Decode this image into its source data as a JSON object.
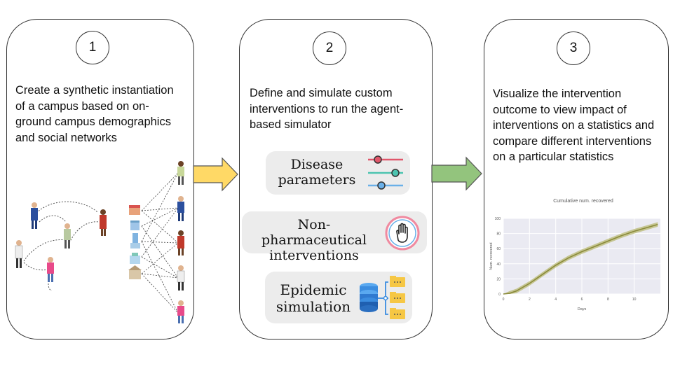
{
  "steps": [
    {
      "number": "1",
      "text": "Create a synthetic instantiation of a campus based on on-ground campus demographics and social networks"
    },
    {
      "number": "2",
      "text": "Define and simulate custom interventions to run the agent-based simulator"
    },
    {
      "number": "3",
      "text": "Visualize the intervention outcome to view impact of interventions on a statistics and compare different interventions on a particular statistics"
    }
  ],
  "features": {
    "disease": {
      "line1": "Disease",
      "line2": "parameters",
      "icon": "slider-settings-icon"
    },
    "npi": {
      "line1": "Non-pharmaceutical",
      "line2": "interventions",
      "icon": "hand-stop-icon"
    },
    "epidemic": {
      "line1": "Epidemic",
      "line2": "simulation",
      "icon": "database-folders-icon"
    }
  },
  "colors": {
    "arrow1": "#ffd966",
    "arrow2": "#93c47d",
    "chart_line": "#8a8a3a",
    "chart_band": "#b5b56a",
    "pill_bg": "#ececec"
  },
  "chart_data": {
    "type": "line",
    "title": "Cumulative num. recovered",
    "xlabel": "Days",
    "ylabel": "Num. recovered",
    "xlim": [
      0,
      12
    ],
    "ylim": [
      0,
      100
    ],
    "x_ticks": [
      "0",
      "2",
      "4",
      "6",
      "8",
      "10"
    ],
    "y_ticks": [
      "0",
      "20",
      "40",
      "60",
      "80",
      "100"
    ],
    "grid": true,
    "x": [
      0,
      0.5,
      1,
      2,
      3,
      4,
      5,
      6,
      7,
      8,
      9,
      10,
      11,
      11.8
    ],
    "y": [
      0,
      1,
      4,
      14,
      26,
      38,
      48,
      56,
      63,
      70,
      77,
      83,
      88,
      92
    ],
    "band": 3
  }
}
